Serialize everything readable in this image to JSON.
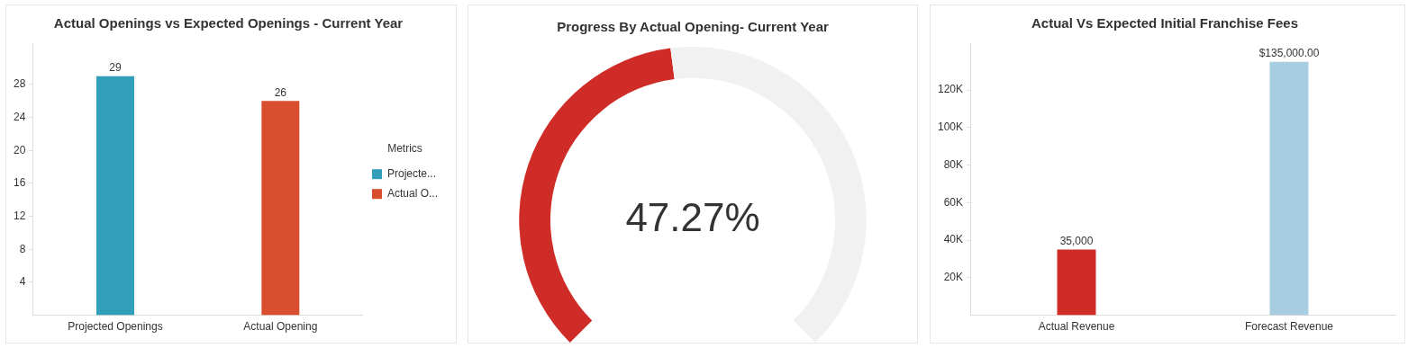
{
  "chart_data": [
    {
      "type": "bar",
      "title": "Actual Openings vs Expected Openings - Current Year",
      "categories": [
        "Projected Openings",
        "Actual Opening"
      ],
      "series": [
        {
          "name": "Projecte...",
          "color": "#319fba",
          "values": [
            29,
            null
          ]
        },
        {
          "name": "Actual O...",
          "color": "#d94e2f",
          "values": [
            null,
            26
          ]
        }
      ],
      "ylim": [
        0,
        33
      ],
      "yticks": [
        4,
        8,
        12,
        16,
        20,
        24,
        28
      ],
      "data_labels": true,
      "legend": "right",
      "legend_title": "Metrics",
      "grid": false
    },
    {
      "type": "donut",
      "title": "Progress By Actual Opening- Current Year",
      "categories": [
        null,
        null
      ],
      "values": [
        47.27,
        52.73
      ],
      "colors": [
        "#cf2b27",
        "#f1f1f1"
      ],
      "annotations": [
        "47.27%"
      ]
    },
    {
      "type": "bar",
      "title": "Actual Vs Expected Initial Franchise Fees",
      "categories": [
        "Actual Revenue",
        "Forecast Revenue"
      ],
      "values": [
        35000,
        135000
      ],
      "colors": [
        "#cf2b27",
        "#a8cce0"
      ],
      "ylim": [
        0,
        145000
      ],
      "yticks": [
        {
          "value": 20000,
          "label": "20K"
        },
        {
          "value": 40000,
          "label": "40K"
        },
        {
          "value": 60000,
          "label": "60K"
        },
        {
          "value": 80000,
          "label": "80K"
        },
        {
          "value": 100000,
          "label": "100K"
        },
        {
          "value": 120000,
          "label": "120K"
        }
      ],
      "value_labels": [
        "35,000",
        "$135,000.00"
      ],
      "grid": false
    }
  ]
}
